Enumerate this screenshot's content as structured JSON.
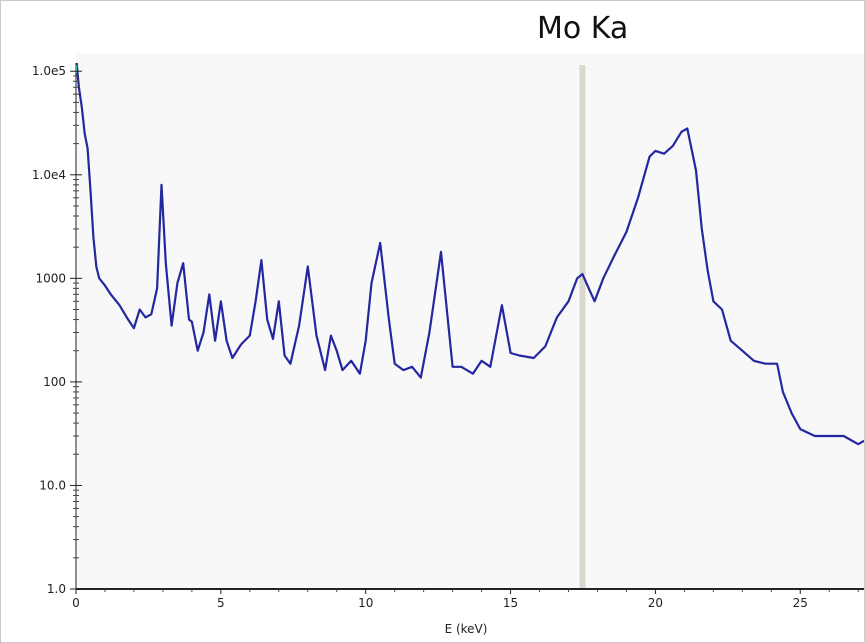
{
  "annotation": "Mo Ka",
  "chart_data": {
    "type": "line",
    "title": "",
    "xlabel": "E (keV)",
    "ylabel": "",
    "x_ticks": [
      "0",
      "5",
      "10",
      "15",
      "20",
      "25"
    ],
    "y_ticks": [
      "1.0",
      "10.0",
      "100",
      "1000",
      "1.0e4",
      "1.0e5"
    ],
    "xlim": [
      0,
      27.2
    ],
    "ylim": [
      1,
      150000
    ],
    "y_scale": "log",
    "grid": false,
    "marker_line_x": 17.48,
    "colors": {
      "series": "#2327a0",
      "marker": "#d8d8cf",
      "plot_bg": "#f8f8f8",
      "start_tick": "#3fbf9f"
    },
    "series": [
      {
        "x": [
          0.02,
          0.1,
          0.2,
          0.3,
          0.4,
          0.5,
          0.6,
          0.7,
          0.8,
          1.0,
          1.2,
          1.5,
          1.8,
          2.0,
          2.2,
          2.4,
          2.6,
          2.8,
          2.95,
          3.1,
          3.3,
          3.5,
          3.7,
          3.9,
          4.0,
          4.2,
          4.4,
          4.6,
          4.8,
          5.0,
          5.2,
          5.4,
          5.7,
          6.0,
          6.2,
          6.4,
          6.6,
          6.8,
          7.0,
          7.2,
          7.4,
          7.7,
          8.0,
          8.3,
          8.6,
          8.8,
          9.0,
          9.2,
          9.5,
          9.8,
          10.0,
          10.2,
          10.5,
          10.8,
          11.0,
          11.3,
          11.6,
          11.9,
          12.2,
          12.6,
          13.0,
          13.3,
          13.7,
          14.0,
          14.3,
          14.7,
          15.0,
          15.3,
          15.8,
          16.2,
          16.6,
          17.0,
          17.3,
          17.48,
          17.7,
          17.9,
          18.2,
          18.6,
          19.0,
          19.4,
          19.8,
          20.0,
          20.3,
          20.6,
          20.9,
          21.1,
          21.4,
          21.6,
          21.8,
          22.0,
          22.3,
          22.6,
          23.0,
          23.4,
          23.8,
          24.2,
          24.4,
          24.7,
          25.0,
          25.5,
          26.0,
          26.5,
          27.0,
          27.2
        ],
        "y": [
          120000,
          70000,
          45000,
          25000,
          18000,
          7000,
          2500,
          1300,
          1000,
          850,
          700,
          550,
          400,
          330,
          500,
          420,
          450,
          800,
          8000,
          1400,
          350,
          900,
          1400,
          400,
          380,
          200,
          300,
          700,
          250,
          600,
          250,
          170,
          230,
          280,
          600,
          1500,
          400,
          260,
          600,
          180,
          150,
          350,
          1300,
          280,
          130,
          280,
          200,
          130,
          160,
          120,
          250,
          900,
          2200,
          400,
          150,
          130,
          140,
          110,
          300,
          1800,
          140,
          140,
          120,
          160,
          140,
          550,
          190,
          180,
          170,
          220,
          420,
          600,
          1000,
          1100,
          800,
          600,
          1000,
          1700,
          2800,
          6000,
          15000,
          17000,
          16000,
          19000,
          26000,
          28000,
          11000,
          3000,
          1200,
          600,
          500,
          250,
          200,
          160,
          150,
          150,
          80,
          50,
          35,
          30,
          30,
          30,
          25,
          27
        ]
      }
    ]
  }
}
